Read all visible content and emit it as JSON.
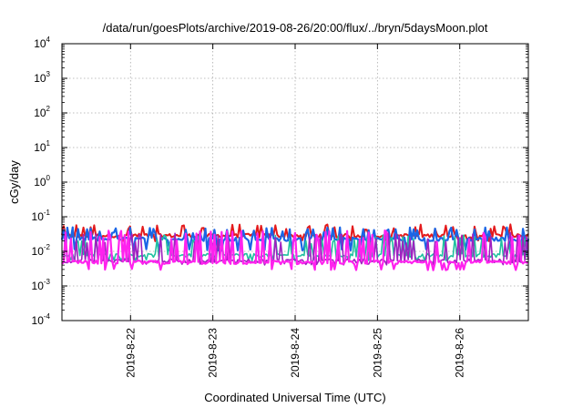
{
  "chart_data": {
    "type": "line",
    "title": "/data/run/goesPlots/archive/2019-08-26/20:00/flux/../bryn/5daysMoon.plot",
    "xlabel": "Coordinated Universal Time (UTC)",
    "ylabel": "cGy/day",
    "y_scale": "log",
    "ylim": [
      0.0001,
      10000
    ],
    "y_ticks": [
      {
        "value": 0.0001,
        "base": "10",
        "exp": "-4"
      },
      {
        "value": 0.001,
        "base": "10",
        "exp": "-3"
      },
      {
        "value": 0.01,
        "base": "10",
        "exp": "-2"
      },
      {
        "value": 0.1,
        "base": "10",
        "exp": "-1"
      },
      {
        "value": 1,
        "base": "10",
        "exp": "0"
      },
      {
        "value": 10,
        "base": "10",
        "exp": "1"
      },
      {
        "value": 100,
        "base": "10",
        "exp": "2"
      },
      {
        "value": 1000,
        "base": "10",
        "exp": "3"
      },
      {
        "value": 10000,
        "base": "10",
        "exp": "4"
      }
    ],
    "xlim": [
      "2019-08-21 04:00",
      "2019-08-26 20:00"
    ],
    "x_ticks": [
      {
        "value": "2019-08-22 00:00",
        "label": "2019-8-22"
      },
      {
        "value": "2019-08-23 00:00",
        "label": "2019-8-23"
      },
      {
        "value": "2019-08-24 00:00",
        "label": "2019-8-24"
      },
      {
        "value": "2019-08-25 00:00",
        "label": "2019-8-25"
      },
      {
        "value": "2019-08-26 00:00",
        "label": "2019-8-26"
      }
    ],
    "grid": true,
    "series": [
      {
        "color": "#e41a1c",
        "base": 0.028,
        "spike": 0.06,
        "dip": 0.02,
        "stroke": 2.0
      },
      {
        "color": "#1a66e6",
        "base": 0.022,
        "spike": 0.05,
        "dip": 0.011,
        "stroke": 2.2
      },
      {
        "color": "#20c0a0",
        "base": 0.0075,
        "spike": 0.03,
        "dip": 0.0055,
        "stroke": 1.6
      },
      {
        "color": "#a020c0",
        "base": 0.0052,
        "spike": 0.035,
        "dip": 0.0042,
        "stroke": 1.6
      },
      {
        "color": "#ff22ee",
        "base": 0.0047,
        "spike": 0.04,
        "dip": 0.003,
        "stroke": 2.2
      }
    ]
  }
}
